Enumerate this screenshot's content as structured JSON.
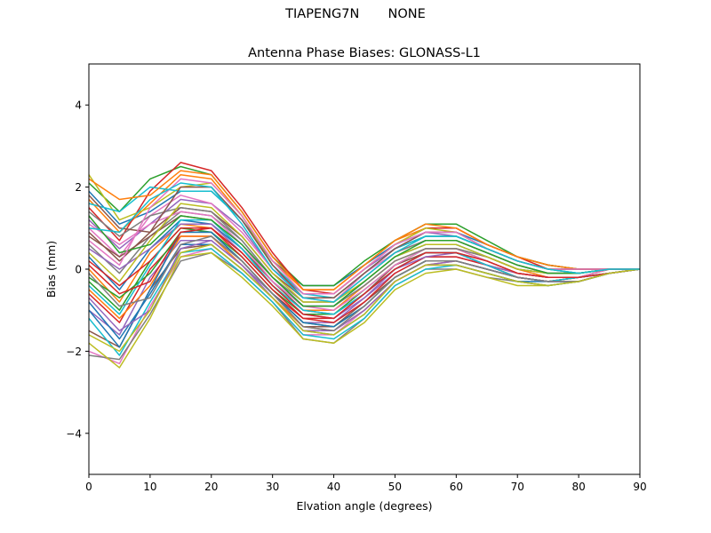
{
  "figure": {
    "suptitle": "TIAPENG7N       NONE"
  },
  "chart_data": {
    "type": "line",
    "title": "Antenna Phase Biases: GLONASS-L1",
    "xlabel": "Elvation angle (degrees)",
    "ylabel": "Bias (mm)",
    "xlim": [
      0,
      90
    ],
    "ylim": [
      -5,
      5
    ],
    "xticks": [
      0,
      10,
      20,
      30,
      40,
      50,
      60,
      70,
      80,
      90
    ],
    "xtick_labels": [
      "0",
      "10",
      "20",
      "30",
      "40",
      "50",
      "60",
      "70",
      "80",
      "90"
    ],
    "yticks": [
      -4,
      -2,
      0,
      2,
      4
    ],
    "ytick_labels": [
      "−4",
      "−2",
      "0",
      "2",
      "4"
    ],
    "grid": false,
    "legend": "none",
    "x": [
      0,
      5,
      10,
      15,
      20,
      25,
      30,
      35,
      40,
      45,
      50,
      55,
      60,
      65,
      70,
      75,
      80,
      85,
      90
    ],
    "palette": [
      "#1f77b4",
      "#ff7f0e",
      "#2ca02c",
      "#d62728",
      "#9467bd",
      "#8c564b",
      "#e377c2",
      "#7f7f7f",
      "#bcbd22",
      "#17becf"
    ],
    "series": [
      {
        "values": [
          1.9,
          1.1,
          1.4,
          1.9,
          1.9,
          1.2,
          0.2,
          -0.4,
          -0.4,
          0.1,
          0.6,
          0.9,
          0.9,
          0.6,
          0.3,
          0.1,
          0.0,
          0.0,
          0.0
        ]
      },
      {
        "values": [
          1.7,
          0.9,
          1.6,
          2.3,
          2.2,
          1.3,
          0.2,
          -0.5,
          -0.5,
          0.1,
          0.7,
          1.0,
          1.0,
          0.6,
          0.3,
          0.1,
          0.0,
          0.0,
          0.0
        ]
      },
      {
        "values": [
          2.1,
          1.4,
          2.2,
          2.5,
          2.3,
          1.4,
          0.3,
          -0.4,
          -0.4,
          0.2,
          0.7,
          1.1,
          1.1,
          0.7,
          0.3,
          0.1,
          0.0,
          0.0,
          0.0
        ]
      },
      {
        "values": [
          1.5,
          0.7,
          1.9,
          2.6,
          2.4,
          1.5,
          0.4,
          -0.5,
          -0.6,
          0.0,
          0.6,
          1.0,
          1.0,
          0.6,
          0.3,
          0.0,
          0.0,
          0.0,
          0.0
        ]
      },
      {
        "values": [
          1.2,
          0.5,
          1.1,
          1.7,
          1.6,
          1.0,
          0.0,
          -0.6,
          -0.6,
          0.0,
          0.5,
          0.9,
          0.8,
          0.5,
          0.2,
          0.0,
          0.0,
          0.0,
          0.0
        ]
      },
      {
        "values": [
          0.9,
          0.2,
          0.9,
          1.5,
          1.4,
          0.8,
          -0.1,
          -0.7,
          -0.7,
          -0.1,
          0.5,
          0.8,
          0.8,
          0.5,
          0.2,
          0.0,
          -0.1,
          0.0,
          0.0
        ]
      },
      {
        "values": [
          1.0,
          0.3,
          1.3,
          1.8,
          1.6,
          0.9,
          0.0,
          -0.7,
          -0.8,
          -0.1,
          0.4,
          0.7,
          0.7,
          0.4,
          0.1,
          -0.1,
          -0.1,
          0.0,
          0.0
        ]
      },
      {
        "values": [
          0.6,
          -0.1,
          0.8,
          1.4,
          1.3,
          0.7,
          -0.2,
          -0.8,
          -0.8,
          -0.2,
          0.4,
          0.7,
          0.7,
          0.4,
          0.1,
          -0.1,
          -0.1,
          0.0,
          0.0
        ]
      },
      {
        "values": [
          2.3,
          1.2,
          1.5,
          2.0,
          2.1,
          1.3,
          0.1,
          -0.6,
          -0.6,
          0.0,
          0.6,
          1.0,
          0.9,
          0.5,
          0.2,
          0.0,
          0.0,
          0.0,
          0.0
        ]
      },
      {
        "values": [
          1.6,
          1.4,
          2.0,
          1.9,
          1.9,
          1.2,
          0.1,
          -0.6,
          -0.7,
          -0.1,
          0.5,
          0.8,
          0.8,
          0.5,
          0.2,
          0.0,
          -0.1,
          0.0,
          0.0
        ]
      },
      {
        "values": [
          0.3,
          -0.5,
          0.5,
          1.2,
          1.1,
          0.5,
          -0.3,
          -0.9,
          -0.9,
          -0.3,
          0.3,
          0.6,
          0.6,
          0.3,
          0.0,
          -0.1,
          -0.1,
          0.0,
          0.0
        ]
      },
      {
        "values": [
          0.0,
          -0.8,
          0.4,
          1.1,
          1.0,
          0.4,
          -0.4,
          -1.0,
          -1.0,
          -0.4,
          0.2,
          0.5,
          0.5,
          0.3,
          0.0,
          -0.2,
          -0.2,
          0.0,
          0.0
        ]
      },
      {
        "values": [
          -0.3,
          -1.0,
          0.2,
          1.0,
          0.9,
          0.3,
          -0.5,
          -1.1,
          -1.1,
          -0.5,
          0.1,
          0.5,
          0.5,
          0.2,
          -0.1,
          -0.2,
          -0.2,
          -0.1,
          0.0
        ]
      },
      {
        "values": [
          -0.6,
          -1.3,
          0.0,
          0.8,
          0.8,
          0.2,
          -0.6,
          -1.2,
          -1.2,
          -0.6,
          0.0,
          0.4,
          0.4,
          0.1,
          -0.1,
          -0.2,
          -0.2,
          -0.1,
          0.0
        ]
      },
      {
        "values": [
          -1.0,
          -1.6,
          -0.2,
          0.7,
          0.7,
          0.1,
          -0.6,
          -1.3,
          -1.3,
          -0.7,
          -0.1,
          0.3,
          0.3,
          0.1,
          -0.2,
          -0.3,
          -0.2,
          -0.1,
          0.0
        ]
      },
      {
        "values": [
          -1.5,
          -1.9,
          -0.5,
          0.5,
          0.6,
          0.0,
          -0.7,
          -1.4,
          -1.4,
          -0.8,
          -0.2,
          0.2,
          0.2,
          0.0,
          -0.2,
          -0.3,
          -0.3,
          -0.1,
          0.0
        ]
      },
      {
        "values": [
          -2.0,
          -2.3,
          -0.9,
          0.3,
          0.5,
          -0.1,
          -0.8,
          -1.6,
          -1.6,
          -1.0,
          -0.3,
          0.1,
          0.1,
          -0.1,
          -0.3,
          -0.4,
          -0.3,
          -0.1,
          0.0
        ]
      },
      {
        "values": [
          -2.1,
          -2.2,
          -1.1,
          0.2,
          0.4,
          -0.1,
          -0.8,
          -1.7,
          -1.8,
          -1.2,
          -0.4,
          0.0,
          0.0,
          -0.2,
          -0.3,
          -0.4,
          -0.3,
          -0.1,
          0.0
        ]
      },
      {
        "values": [
          -1.8,
          -2.4,
          -1.2,
          0.3,
          0.4,
          -0.2,
          -0.9,
          -1.7,
          -1.8,
          -1.3,
          -0.5,
          -0.1,
          0.0,
          -0.2,
          -0.4,
          -0.4,
          -0.3,
          -0.1,
          0.0
        ]
      },
      {
        "values": [
          -1.2,
          -2.1,
          -0.8,
          0.4,
          0.5,
          -0.1,
          -0.8,
          -1.6,
          -1.7,
          -1.2,
          -0.4,
          0.0,
          0.1,
          -0.1,
          -0.3,
          -0.4,
          -0.3,
          -0.1,
          0.0
        ]
      },
      {
        "values": [
          -0.8,
          -1.7,
          -0.6,
          0.6,
          0.6,
          0.0,
          -0.7,
          -1.5,
          -1.6,
          -1.1,
          -0.3,
          0.1,
          0.1,
          -0.1,
          -0.3,
          -0.3,
          -0.3,
          -0.1,
          0.0
        ]
      },
      {
        "values": [
          -0.5,
          -1.2,
          -0.4,
          0.8,
          0.8,
          0.1,
          -0.7,
          -1.4,
          -1.5,
          -1.0,
          -0.3,
          0.1,
          0.2,
          0.0,
          -0.2,
          -0.3,
          -0.2,
          -0.1,
          0.0
        ]
      },
      {
        "values": [
          -0.2,
          -0.7,
          -0.1,
          0.9,
          0.9,
          0.2,
          -0.6,
          -1.3,
          -1.4,
          -0.9,
          -0.2,
          0.2,
          0.2,
          0.0,
          -0.2,
          -0.3,
          -0.2,
          -0.1,
          0.0
        ]
      },
      {
        "values": [
          0.2,
          -0.4,
          0.2,
          1.0,
          1.0,
          0.3,
          -0.5,
          -1.2,
          -1.3,
          -0.8,
          -0.1,
          0.3,
          0.3,
          0.1,
          -0.2,
          -0.3,
          -0.2,
          -0.1,
          0.0
        ]
      },
      {
        "values": [
          0.5,
          0.0,
          0.5,
          1.1,
          1.1,
          0.4,
          -0.4,
          -1.1,
          -1.2,
          -0.7,
          0.0,
          0.3,
          0.4,
          0.1,
          -0.1,
          -0.2,
          -0.2,
          -0.1,
          0.0
        ]
      },
      {
        "values": [
          0.8,
          0.3,
          0.8,
          1.3,
          1.2,
          0.5,
          -0.3,
          -1.0,
          -1.1,
          -0.6,
          0.1,
          0.4,
          0.4,
          0.2,
          -0.1,
          -0.2,
          -0.2,
          0.0,
          0.0
        ]
      },
      {
        "values": [
          1.1,
          0.6,
          1.1,
          1.4,
          1.3,
          0.6,
          -0.3,
          -0.9,
          -1.0,
          -0.5,
          0.1,
          0.5,
          0.5,
          0.2,
          -0.1,
          -0.2,
          -0.2,
          0.0,
          0.0
        ]
      },
      {
        "values": [
          1.4,
          0.8,
          1.3,
          1.5,
          1.4,
          0.7,
          -0.2,
          -0.9,
          -0.9,
          -0.4,
          0.2,
          0.5,
          0.5,
          0.3,
          0.0,
          -0.1,
          -0.1,
          0.0,
          0.0
        ]
      },
      {
        "values": [
          0.4,
          -0.3,
          0.7,
          1.6,
          1.5,
          0.8,
          -0.1,
          -0.8,
          -0.8,
          -0.3,
          0.3,
          0.6,
          0.6,
          0.3,
          0.0,
          -0.1,
          -0.1,
          0.0,
          0.0
        ]
      },
      {
        "values": [
          -0.4,
          -1.1,
          0.1,
          1.2,
          1.2,
          0.5,
          -0.4,
          -1.0,
          -1.1,
          -0.6,
          0.0,
          0.4,
          0.4,
          0.1,
          -0.2,
          -0.3,
          -0.2,
          -0.1,
          0.0
        ]
      },
      {
        "values": [
          -1.0,
          -1.9,
          -0.5,
          0.9,
          0.9,
          0.2,
          -0.6,
          -1.3,
          -1.4,
          -0.9,
          -0.2,
          0.2,
          0.2,
          0.0,
          -0.2,
          -0.3,
          -0.3,
          -0.1,
          0.0
        ]
      },
      {
        "values": [
          2.2,
          1.7,
          1.8,
          2.4,
          2.3,
          1.4,
          0.3,
          -0.5,
          -0.5,
          0.1,
          0.7,
          1.1,
          1.0,
          0.6,
          0.3,
          0.1,
          0.0,
          0.0,
          0.0
        ]
      },
      {
        "values": [
          1.3,
          0.4,
          0.6,
          1.3,
          1.2,
          0.6,
          -0.2,
          -0.9,
          -0.9,
          -0.3,
          0.3,
          0.7,
          0.7,
          0.4,
          0.1,
          -0.1,
          -0.1,
          0.0,
          0.0
        ]
      },
      {
        "values": [
          0.1,
          -0.6,
          -0.3,
          0.9,
          1.0,
          0.4,
          -0.4,
          -1.1,
          -1.2,
          -0.6,
          0.0,
          0.4,
          0.4,
          0.2,
          -0.1,
          -0.2,
          -0.2,
          -0.1,
          0.0
        ]
      },
      {
        "values": [
          -0.7,
          -1.5,
          -1.0,
          0.5,
          0.7,
          0.1,
          -0.7,
          -1.5,
          -1.5,
          -1.0,
          -0.3,
          0.1,
          0.2,
          0.0,
          -0.2,
          -0.3,
          -0.3,
          -0.1,
          0.0
        ]
      },
      {
        "values": [
          1.8,
          1.0,
          0.9,
          2.0,
          2.0,
          1.2,
          0.1,
          -0.7,
          -0.7,
          -0.1,
          0.5,
          0.9,
          0.9,
          0.5,
          0.2,
          0.0,
          0.0,
          0.0,
          0.0
        ]
      },
      {
        "values": [
          0.7,
          0.1,
          1.5,
          2.2,
          2.1,
          1.3,
          0.2,
          -0.6,
          -0.6,
          0.0,
          0.6,
          0.9,
          0.9,
          0.5,
          0.2,
          0.0,
          0.0,
          0.0,
          0.0
        ]
      },
      {
        "values": [
          -0.1,
          -0.9,
          -0.7,
          0.6,
          0.8,
          0.2,
          -0.6,
          -1.4,
          -1.5,
          -0.9,
          -0.2,
          0.2,
          0.2,
          0.0,
          -0.2,
          -0.3,
          -0.3,
          -0.1,
          0.0
        ]
      },
      {
        "values": [
          -1.6,
          -2.0,
          -1.0,
          0.4,
          0.6,
          0.0,
          -0.7,
          -1.5,
          -1.6,
          -1.1,
          -0.3,
          0.1,
          0.1,
          -0.1,
          -0.3,
          -0.4,
          -0.3,
          -0.1,
          0.0
        ]
      },
      {
        "values": [
          1.0,
          0.9,
          1.7,
          2.1,
          2.0,
          1.1,
          0.0,
          -0.7,
          -0.8,
          -0.2,
          0.4,
          0.8,
          0.8,
          0.5,
          0.2,
          0.0,
          -0.1,
          0.0,
          0.0
        ]
      }
    ]
  }
}
